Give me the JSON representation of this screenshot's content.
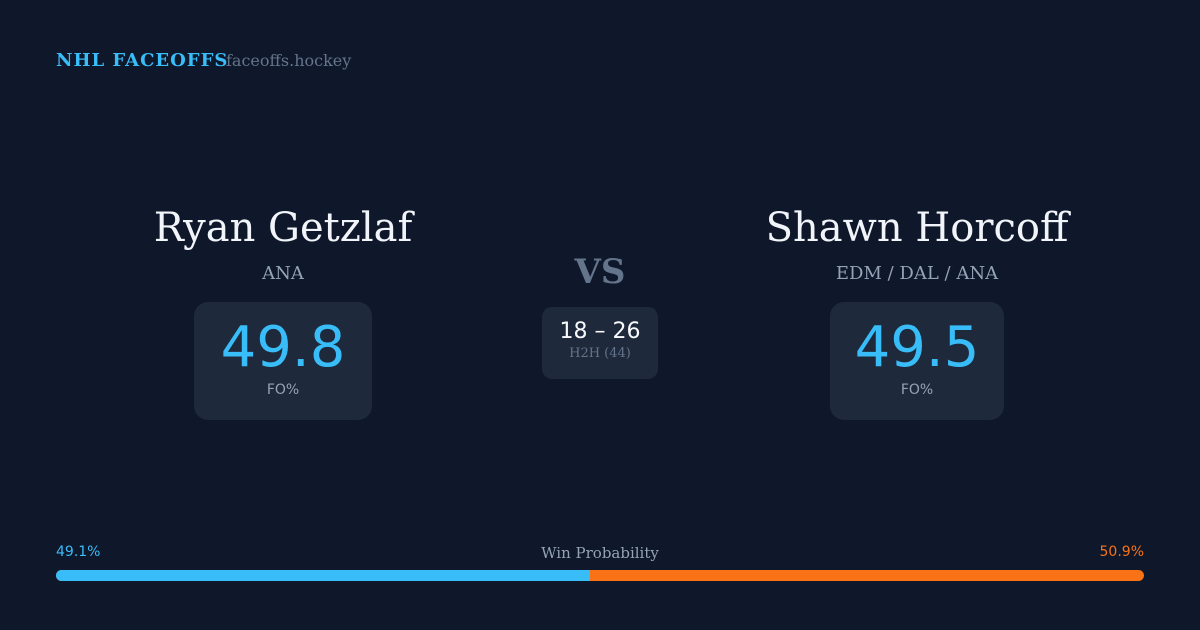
{
  "header": {
    "brand": "NHL FACEOFFS",
    "site": "faceoffs.hockey"
  },
  "left": {
    "name": "Ryan Getzlaf",
    "team": "ANA",
    "fo": "49.8",
    "fo_label": "FO%"
  },
  "right": {
    "name": "Shawn Horcoff",
    "team": "EDM / DAL / ANA",
    "fo": "49.5",
    "fo_label": "FO%"
  },
  "center": {
    "vs": "VS",
    "score": "18 – 26",
    "h2h": "H2H (44)"
  },
  "win": {
    "label": "Win Probability",
    "left_text": "49.1%",
    "right_text": "50.9%",
    "left_pct": 49.1,
    "right_pct": 50.9
  },
  "colors": {
    "background": "#0f172a",
    "card": "#1e293b",
    "left": "#38bdf8",
    "right": "#f97316"
  }
}
